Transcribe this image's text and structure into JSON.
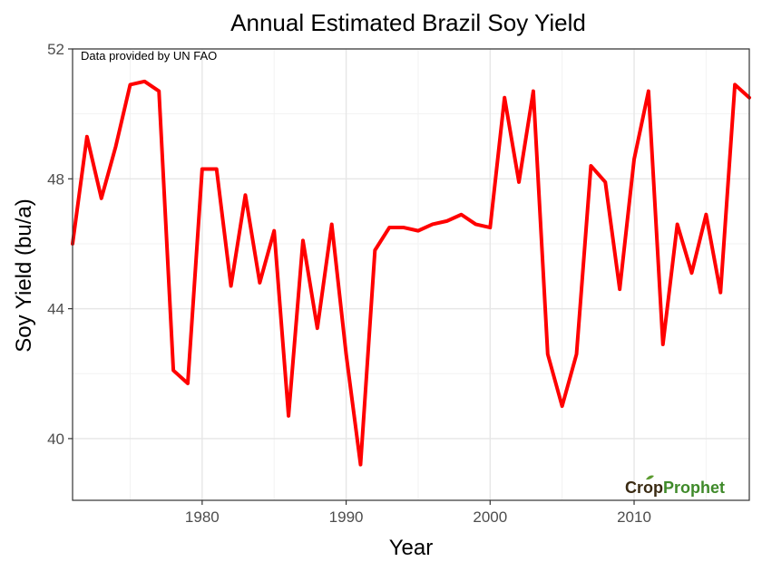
{
  "chart_data": {
    "type": "line",
    "title": "Annual Estimated Brazil Soy Yield",
    "xlabel": "Year",
    "ylabel": "Soy Yield (bu/a)",
    "annotation": "Data provided by UN FAO",
    "xlim": [
      1971,
      2018
    ],
    "ylim": [
      38.1,
      52
    ],
    "x_ticks": [
      1980,
      1990,
      2000,
      2010
    ],
    "y_ticks": [
      40,
      44,
      48,
      52
    ],
    "grid": true,
    "legend": "none",
    "series": [
      {
        "color": "#ff0000",
        "x": [
          1971,
          1972,
          1973,
          1974,
          1975,
          1976,
          1977,
          1978,
          1979,
          1980,
          1981,
          1982,
          1983,
          1984,
          1985,
          1986,
          1987,
          1988,
          1989,
          1990,
          1991,
          1992,
          1993,
          1994,
          1995,
          1996,
          1997,
          1998,
          1999,
          2000,
          2001,
          2002,
          2003,
          2004,
          2005,
          2006,
          2007,
          2008,
          2009,
          2010,
          2011,
          2012,
          2013,
          2014,
          2015,
          2016,
          2017,
          2018
        ],
        "values": [
          46.0,
          49.3,
          47.4,
          49.0,
          50.9,
          51.0,
          50.7,
          42.1,
          41.7,
          48.3,
          48.3,
          44.7,
          47.5,
          44.8,
          46.4,
          40.7,
          46.1,
          43.4,
          46.6,
          42.6,
          39.2,
          45.8,
          46.5,
          46.5,
          46.4,
          46.6,
          46.7,
          46.9,
          46.6,
          46.5,
          50.5,
          47.9,
          50.7,
          42.6,
          41.0,
          42.6,
          48.4,
          47.9,
          44.6,
          48.6,
          50.7,
          42.9,
          46.6,
          45.1,
          46.9,
          44.5,
          50.9,
          50.5
        ]
      }
    ]
  },
  "logo": {
    "part1": "Crop",
    "part2": "Prophet",
    "color1": "#3a2a12",
    "color2": "#3f8a2a"
  }
}
